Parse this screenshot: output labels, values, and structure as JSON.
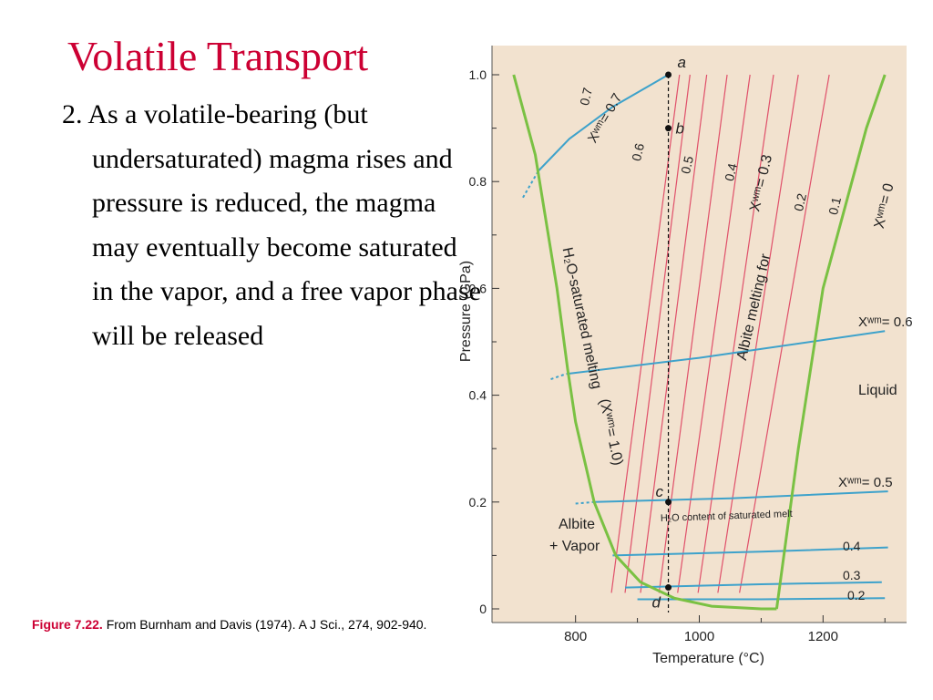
{
  "slide": {
    "title": "Volatile Transport",
    "bullet": "2. As a volatile-bearing (but undersaturated) magma rises and pressure is reduced, the magma may eventually become saturated in the vapor, and a free vapor phase will be released",
    "caption_label": "Figure 7.22.",
    "caption_text": " From Burnham and Davis (1974). A J Sci., 274, 902-940."
  },
  "colors": {
    "title": "#cc0033",
    "caption_label": "#cc0033",
    "plot_background": "#f2e2cf",
    "solidus": "#7ac143",
    "isopleth": "#e0506a",
    "water_content": "#3ea2cb"
  },
  "chart_data": {
    "type": "line",
    "title": "",
    "xlabel": "Temperature (°C)",
    "ylabel": "Pressure (GPa)",
    "xlim": [
      650,
      1330
    ],
    "ylim": [
      0,
      1.0
    ],
    "x_ticks": [
      {
        "value": 800,
        "label": "800"
      },
      {
        "value": 1000,
        "label": "1000"
      },
      {
        "value": 1200,
        "label": "1200"
      }
    ],
    "y_ticks": [
      {
        "value": 0,
        "label": "0"
      },
      {
        "value": 0.2,
        "label": "0.2"
      },
      {
        "value": 0.4,
        "label": "0.4"
      },
      {
        "value": 0.6,
        "label": "0.6"
      },
      {
        "value": 0.8,
        "label": "0.8"
      },
      {
        "value": 1.0,
        "label": "1.0"
      }
    ],
    "solidus_saturated": {
      "points": [
        [
          700,
          1.0
        ],
        [
          735,
          0.85
        ],
        [
          770,
          0.6
        ],
        [
          787,
          0.45
        ],
        [
          800,
          0.35
        ],
        [
          830,
          0.2
        ],
        [
          865,
          0.1
        ],
        [
          905,
          0.05
        ],
        [
          960,
          0.02
        ],
        [
          1020,
          0.005
        ],
        [
          1100,
          0.0
        ],
        [
          1125,
          0.0
        ]
      ],
      "label_main": "H₂O-saturated melting",
      "label_xw": "(Xʷᵐ= 1.0)"
    },
    "solidus_dry": {
      "points": [
        [
          1125,
          0.0
        ],
        [
          1160,
          0.3
        ],
        [
          1200,
          0.6
        ],
        [
          1270,
          0.9
        ],
        [
          1300,
          1.0
        ]
      ],
      "label": "Xʷᵐ= 0"
    },
    "isopleths": {
      "note": "Albite melting for",
      "label_xw": "Xʷᵐ= 0.3",
      "lines": [
        {
          "label": "0.7",
          "bottom_x": 858,
          "top_x": 968
        },
        {
          "label": "0.6",
          "bottom_x": 880,
          "top_x": 985
        },
        {
          "label": "0.5",
          "bottom_x": 905,
          "top_x": 1012
        },
        {
          "label": "0.4",
          "bottom_x": 935,
          "top_x": 1045
        },
        {
          "label": "",
          "bottom_x": 965,
          "top_x": 1082
        },
        {
          "label": "",
          "bottom_x": 998,
          "top_x": 1120
        },
        {
          "label": "0.2",
          "bottom_x": 1030,
          "top_x": 1160
        },
        {
          "label": "0.1",
          "bottom_x": 1065,
          "top_x": 1210
        }
      ]
    },
    "water_lines": [
      {
        "label": "Xʷᵐ= 0.7",
        "points": [
          [
            740,
            0.82
          ],
          [
            790,
            0.88
          ],
          [
            860,
            0.94
          ],
          [
            950,
            1.0
          ]
        ]
      },
      {
        "label": "Xʷᵐ= 0.6",
        "points": [
          [
            785,
            0.44
          ],
          [
            1000,
            0.47
          ],
          [
            1300,
            0.52
          ]
        ]
      },
      {
        "label": "Xʷᵐ= 0.5",
        "points": [
          [
            830,
            0.2
          ],
          [
            1050,
            0.207
          ],
          [
            1305,
            0.22
          ]
        ]
      },
      {
        "label": "0.4",
        "points": [
          [
            860,
            0.1
          ],
          [
            1100,
            0.107
          ],
          [
            1305,
            0.115
          ]
        ]
      },
      {
        "label": "0.3",
        "points": [
          [
            880,
            0.04
          ],
          [
            1100,
            0.046
          ],
          [
            1295,
            0.05
          ]
        ]
      },
      {
        "label": "0.2",
        "points": [
          [
            900,
            0.018
          ],
          [
            1100,
            0.018
          ],
          [
            1300,
            0.02
          ]
        ]
      }
    ],
    "path": {
      "x": 950,
      "points": [
        {
          "label": "a",
          "y": 1.0
        },
        {
          "label": "b",
          "y": 0.9
        },
        {
          "label": "c",
          "y": 0.2
        },
        {
          "label": "d",
          "y": 0.04
        }
      ]
    },
    "annotations": {
      "saturated_melt": "H₂O content of saturated melt",
      "liquid": "Liquid",
      "albite": "Albite",
      "vapor": "+ Vapor"
    }
  }
}
